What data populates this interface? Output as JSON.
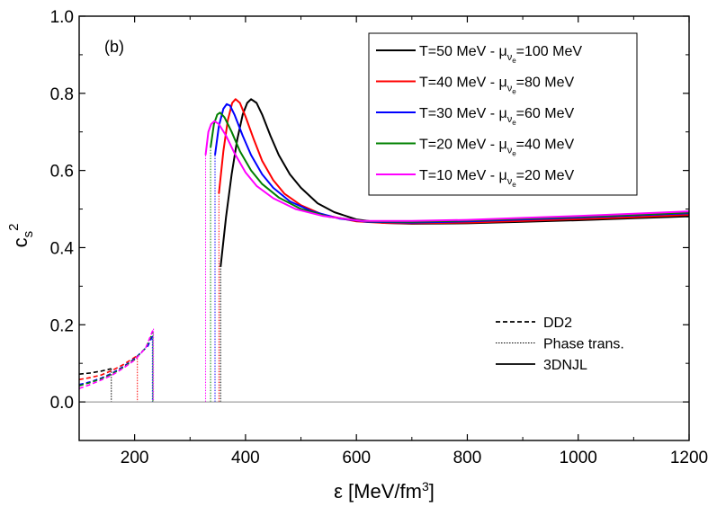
{
  "chart_data": {
    "type": "line",
    "panel_label": "(b)",
    "xlabel": "ε [MeV/fm³]",
    "ylabel": "cs²",
    "xlim": [
      100,
      1200
    ],
    "ylim": [
      -0.1,
      1.0
    ],
    "x_ticks": [
      200,
      400,
      600,
      800,
      1000,
      1200
    ],
    "y_ticks": [
      0.0,
      0.2,
      0.4,
      0.6,
      0.8,
      1.0
    ],
    "x_tick_labels": [
      "200",
      "400",
      "600",
      "800",
      "1000",
      "1200"
    ],
    "y_tick_labels": [
      "0.0",
      "0.2",
      "0.4",
      "0.6",
      "0.8",
      "1.0"
    ],
    "zero_line": 0.0,
    "legend_placement": "top-right",
    "style_legend_placement": "bottom-right",
    "series": [
      {
        "name": "T=50 MeV - μνe=100 MeV",
        "legend": {
          "prefix": "T=50 MeV - ",
          "mu": "μ",
          "sub1": "ν",
          "sub2": "e",
          "suffix": "=100 MeV"
        },
        "color": "#000000",
        "dd2": [
          [
            100,
            0.072
          ],
          [
            120,
            0.075
          ],
          [
            140,
            0.08
          ],
          [
            158,
            0.086
          ]
        ],
        "transition": [
          158,
          355
        ],
        "njl": [
          [
            355,
            0.35
          ],
          [
            365,
            0.48
          ],
          [
            375,
            0.59
          ],
          [
            385,
            0.68
          ],
          [
            395,
            0.745
          ],
          [
            403,
            0.775
          ],
          [
            410,
            0.785
          ],
          [
            420,
            0.775
          ],
          [
            430,
            0.745
          ],
          [
            445,
            0.69
          ],
          [
            460,
            0.64
          ],
          [
            480,
            0.59
          ],
          [
            500,
            0.555
          ],
          [
            530,
            0.515
          ],
          [
            560,
            0.492
          ],
          [
            600,
            0.473
          ],
          [
            650,
            0.464
          ],
          [
            700,
            0.462
          ],
          [
            800,
            0.463
          ],
          [
            900,
            0.467
          ],
          [
            1000,
            0.471
          ],
          [
            1100,
            0.476
          ],
          [
            1200,
            0.481
          ]
        ]
      },
      {
        "name": "T=40 MeV - μνe=80 MeV",
        "legend": {
          "prefix": "T=40 MeV - ",
          "mu": "μ",
          "sub1": "ν",
          "sub2": "e",
          "suffix": "=80 MeV"
        },
        "color": "#ff0000",
        "dd2": [
          [
            100,
            0.058
          ],
          [
            120,
            0.063
          ],
          [
            140,
            0.07
          ],
          [
            160,
            0.082
          ],
          [
            180,
            0.097
          ],
          [
            205,
            0.12
          ]
        ],
        "transition": [
          205,
          352
        ],
        "njl": [
          [
            352,
            0.54
          ],
          [
            360,
            0.65
          ],
          [
            368,
            0.73
          ],
          [
            376,
            0.775
          ],
          [
            382,
            0.785
          ],
          [
            390,
            0.775
          ],
          [
            400,
            0.74
          ],
          [
            415,
            0.68
          ],
          [
            430,
            0.625
          ],
          [
            450,
            0.575
          ],
          [
            470,
            0.54
          ],
          [
            500,
            0.51
          ],
          [
            540,
            0.485
          ],
          [
            600,
            0.468
          ],
          [
            650,
            0.464
          ],
          [
            700,
            0.463
          ],
          [
            800,
            0.465
          ],
          [
            900,
            0.469
          ],
          [
            1000,
            0.474
          ],
          [
            1100,
            0.479
          ],
          [
            1200,
            0.485
          ]
        ]
      },
      {
        "name": "T=30 MeV - μνe=60 MeV",
        "legend": {
          "prefix": "T=30 MeV - ",
          "mu": "μ",
          "sub1": "ν",
          "sub2": "e",
          "suffix": "=60 MeV"
        },
        "color": "#0000ff",
        "dd2": [
          [
            100,
            0.045
          ],
          [
            120,
            0.052
          ],
          [
            140,
            0.062
          ],
          [
            160,
            0.075
          ],
          [
            180,
            0.092
          ],
          [
            200,
            0.112
          ],
          [
            224,
            0.145
          ],
          [
            232,
            0.17
          ]
        ],
        "transition": [
          232,
          345
        ],
        "njl": [
          [
            345,
            0.64
          ],
          [
            352,
            0.715
          ],
          [
            360,
            0.76
          ],
          [
            366,
            0.772
          ],
          [
            372,
            0.768
          ],
          [
            380,
            0.745
          ],
          [
            395,
            0.69
          ],
          [
            410,
            0.64
          ],
          [
            430,
            0.59
          ],
          [
            450,
            0.555
          ],
          [
            480,
            0.52
          ],
          [
            520,
            0.494
          ],
          [
            570,
            0.475
          ],
          [
            620,
            0.467
          ],
          [
            700,
            0.465
          ],
          [
            800,
            0.468
          ],
          [
            900,
            0.473
          ],
          [
            1000,
            0.478
          ],
          [
            1100,
            0.483
          ],
          [
            1200,
            0.489
          ]
        ]
      },
      {
        "name": "T=20 MeV - μνe=40 MeV",
        "legend": {
          "prefix": "T=20 MeV - ",
          "mu": "μ",
          "sub1": "ν",
          "sub2": "e",
          "suffix": "=40 MeV"
        },
        "color": "#008000",
        "dd2": [
          [
            100,
            0.042
          ],
          [
            120,
            0.05
          ],
          [
            140,
            0.06
          ],
          [
            160,
            0.073
          ],
          [
            180,
            0.09
          ],
          [
            200,
            0.11
          ],
          [
            220,
            0.14
          ],
          [
            233,
            0.18
          ]
        ],
        "transition": [
          233,
          337
        ],
        "njl": [
          [
            337,
            0.66
          ],
          [
            343,
            0.72
          ],
          [
            349,
            0.745
          ],
          [
            354,
            0.75
          ],
          [
            362,
            0.738
          ],
          [
            375,
            0.7
          ],
          [
            390,
            0.65
          ],
          [
            410,
            0.6
          ],
          [
            430,
            0.565
          ],
          [
            460,
            0.53
          ],
          [
            500,
            0.5
          ],
          [
            550,
            0.48
          ],
          [
            620,
            0.468
          ],
          [
            700,
            0.467
          ],
          [
            800,
            0.47
          ],
          [
            900,
            0.475
          ],
          [
            1000,
            0.48
          ],
          [
            1100,
            0.485
          ],
          [
            1200,
            0.491
          ]
        ]
      },
      {
        "name": "T=10 MeV - μνe=20 MeV",
        "legend": {
          "prefix": "T=10 MeV - ",
          "mu": "μ",
          "sub1": "ν",
          "sub2": "e",
          "suffix": "=20 MeV"
        },
        "color": "#ff00ff",
        "dd2": [
          [
            100,
            0.035
          ],
          [
            120,
            0.045
          ],
          [
            140,
            0.057
          ],
          [
            160,
            0.07
          ],
          [
            180,
            0.088
          ],
          [
            200,
            0.108
          ],
          [
            220,
            0.14
          ],
          [
            234,
            0.19
          ]
        ],
        "transition": [
          234,
          328
        ],
        "njl": [
          [
            328,
            0.64
          ],
          [
            333,
            0.7
          ],
          [
            338,
            0.72
          ],
          [
            344,
            0.728
          ],
          [
            352,
            0.72
          ],
          [
            365,
            0.69
          ],
          [
            380,
            0.645
          ],
          [
            400,
            0.595
          ],
          [
            420,
            0.56
          ],
          [
            450,
            0.528
          ],
          [
            490,
            0.5
          ],
          [
            540,
            0.482
          ],
          [
            610,
            0.469
          ],
          [
            700,
            0.469
          ],
          [
            800,
            0.472
          ],
          [
            900,
            0.477
          ],
          [
            1000,
            0.482
          ],
          [
            1100,
            0.488
          ],
          [
            1200,
            0.494
          ]
        ]
      }
    ],
    "style_legend": [
      {
        "label": "DD2",
        "dash": "dashed"
      },
      {
        "label": "Phase trans.",
        "dash": "dotted"
      },
      {
        "label": "3DNJL",
        "dash": "solid"
      }
    ]
  }
}
